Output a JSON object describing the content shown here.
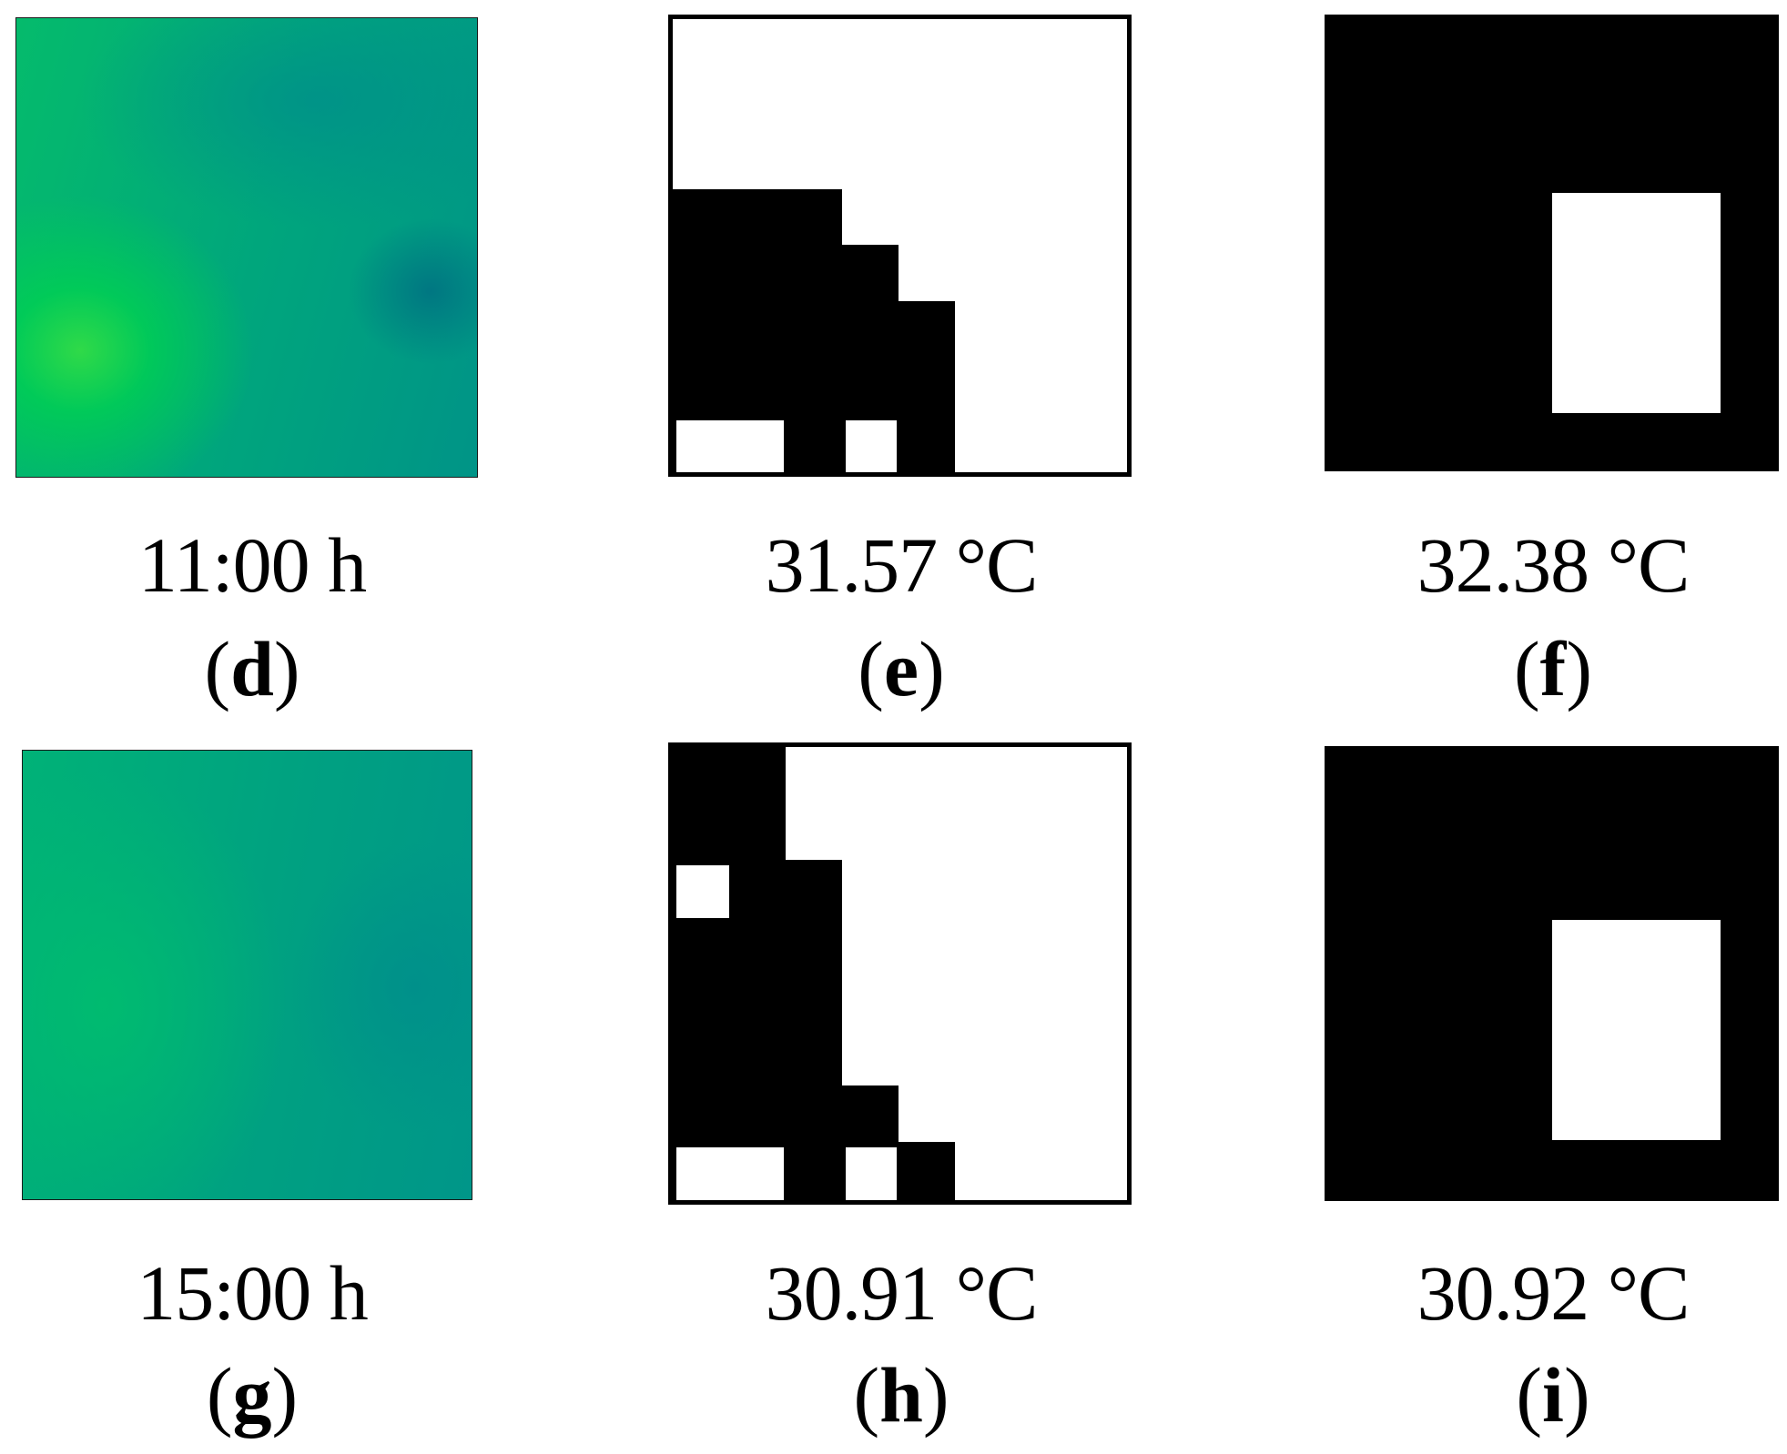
{
  "panels": {
    "d": {
      "value": "11:00 h",
      "letter": "d"
    },
    "e": {
      "value": "31.57 °C",
      "letter": "e"
    },
    "f": {
      "value": "32.38 °C",
      "letter": "f"
    },
    "g": {
      "value": "15:00 h",
      "letter": "g"
    },
    "h": {
      "value": "30.91 °C",
      "letter": "h"
    },
    "i": {
      "value": "30.92 °C",
      "letter": "i"
    }
  },
  "colors": {
    "heatmap_high": "#00d44c",
    "heatmap_mid": "#00a87a",
    "heatmap_low": "#008c88",
    "binary_black": "#000000",
    "binary_white": "#ffffff"
  }
}
